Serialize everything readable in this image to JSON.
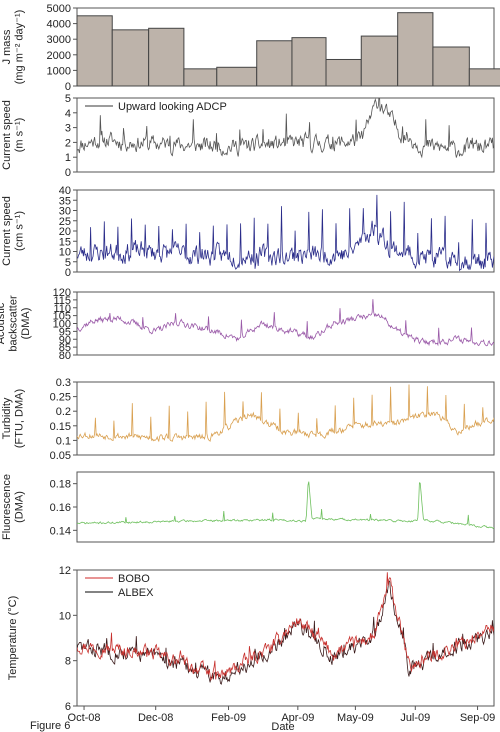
{
  "figure_label": "Figure 6",
  "xlabel": "Date",
  "x_ticks": [
    "Oct-08",
    "Dec-08",
    "Feb-09",
    "Apr-09",
    "May-09",
    "Jul-09",
    "Sep-09"
  ],
  "x_domain": [
    "2008-09-25",
    "2009-09-15"
  ],
  "chart_data": [
    {
      "id": "jmass",
      "type": "bar",
      "ylabel_lines": [
        "J mass",
        "(mg m⁻² day⁻¹)"
      ],
      "ylim": [
        0,
        5000
      ],
      "yticks": [
        0,
        1000,
        2000,
        3000,
        4000,
        5000
      ],
      "bar_fill": "#bdb3aa",
      "bar_stroke": "#444444",
      "bars": [
        {
          "start": "2008-09-25",
          "end": "2008-10-25",
          "value": 4500
        },
        {
          "start": "2008-10-25",
          "end": "2008-11-25",
          "value": 3600
        },
        {
          "start": "2008-11-25",
          "end": "2008-12-25",
          "value": 3700
        },
        {
          "start": "2008-12-25",
          "end": "2009-01-22",
          "value": 1100
        },
        {
          "start": "2009-01-22",
          "end": "2009-02-25",
          "value": 1200
        },
        {
          "start": "2009-02-25",
          "end": "2009-03-27",
          "value": 2900
        },
        {
          "start": "2009-03-27",
          "end": "2009-04-25",
          "value": 3100
        },
        {
          "start": "2009-04-25",
          "end": "2009-05-25",
          "value": 1700
        },
        {
          "start": "2009-05-25",
          "end": "2009-06-25",
          "value": 3200
        },
        {
          "start": "2009-06-25",
          "end": "2009-07-25",
          "value": 4700
        },
        {
          "start": "2009-07-25",
          "end": "2009-08-25",
          "value": 2500
        },
        {
          "start": "2009-08-25",
          "end": "2009-09-25",
          "value": 1100
        }
      ]
    },
    {
      "id": "adcp",
      "type": "line",
      "ylabel_lines": [
        "Current speed",
        "(m s⁻¹)"
      ],
      "ylim": [
        0,
        5
      ],
      "yticks": [
        0,
        1,
        2,
        3,
        4,
        5
      ],
      "legend": [
        {
          "name": "Upward looking ADCP",
          "color": "#7a7a7a"
        }
      ],
      "series": [
        {
          "name": "Upward looking ADCP",
          "color": "#555555",
          "base": [
            [
              "2008-09-25",
              1.8
            ],
            [
              "2008-10-15",
              2.2
            ],
            [
              "2008-11-05",
              2.0
            ],
            [
              "2008-12-01",
              1.9
            ],
            [
              "2009-01-05",
              1.8
            ],
            [
              "2009-02-01",
              1.7
            ],
            [
              "2009-03-01",
              1.8
            ],
            [
              "2009-04-01",
              2.0
            ],
            [
              "2009-05-01",
              1.9
            ],
            [
              "2009-05-25",
              2.2
            ],
            [
              "2009-06-08",
              4.8
            ],
            [
              "2009-06-28",
              2.6
            ],
            [
              "2009-07-15",
              1.8
            ],
            [
              "2009-08-15",
              1.5
            ],
            [
              "2009-09-15",
              1.8
            ]
          ],
          "noise": 0.9,
          "spike_every": 29,
          "spike": 1.4,
          "min": 0.05,
          "seed": 11
        }
      ]
    },
    {
      "id": "current",
      "type": "line",
      "ylabel_lines": [
        "Current speed",
        "(cm s⁻¹)"
      ],
      "ylim": [
        0,
        40
      ],
      "yticks": [
        0,
        5,
        10,
        15,
        20,
        25,
        30,
        35,
        40
      ],
      "series": [
        {
          "name": "",
          "color": "#2a2c8a",
          "base": [
            [
              "2008-09-25",
              9
            ],
            [
              "2008-11-15",
              10
            ],
            [
              "2009-01-15",
              8
            ],
            [
              "2009-03-15",
              8
            ],
            [
              "2009-05-15",
              9
            ],
            [
              "2009-06-05",
              22
            ],
            [
              "2009-06-20",
              12
            ],
            [
              "2009-07-15",
              7
            ],
            [
              "2009-09-15",
              5
            ]
          ],
          "noise": 8,
          "spike_every": 17,
          "spike": 20,
          "min": 0.3,
          "seed": 23
        }
      ]
    },
    {
      "id": "backscatter",
      "type": "line",
      "ylabel_lines": [
        "Acoustic",
        "backscatter",
        "(DMA)"
      ],
      "ylim": [
        80,
        120
      ],
      "yticks": [
        80,
        85,
        90,
        95,
        100,
        105,
        110,
        115,
        120
      ],
      "series": [
        {
          "name": "",
          "color": "#9a5aa8",
          "base": [
            [
              "2008-09-25",
              97
            ],
            [
              "2008-10-10",
              102
            ],
            [
              "2008-11-01",
              103
            ],
            [
              "2008-12-01",
              95
            ],
            [
              "2008-12-20",
              101
            ],
            [
              "2009-01-20",
              95
            ],
            [
              "2009-02-10",
              90
            ],
            [
              "2009-03-01",
              100
            ],
            [
              "2009-03-25",
              95
            ],
            [
              "2009-04-15",
              91
            ],
            [
              "2009-05-01",
              100
            ],
            [
              "2009-05-25",
              104
            ],
            [
              "2009-06-10",
              105
            ],
            [
              "2009-06-25",
              95
            ],
            [
              "2009-07-15",
              88
            ],
            [
              "2009-08-15",
              90
            ],
            [
              "2009-09-15",
              88
            ]
          ],
          "noise": 3.5,
          "spike_every": 41,
          "spike": 8,
          "min": 80,
          "seed": 37
        }
      ]
    },
    {
      "id": "turbidity",
      "type": "line",
      "ylabel_lines": [
        "Turbidity",
        "(FTU, DMA)"
      ],
      "ylim": [
        0.05,
        0.3
      ],
      "yticks": [
        0.05,
        0.1,
        0.15,
        0.2,
        0.25,
        0.3
      ],
      "series": [
        {
          "name": "",
          "color": "#d9a050",
          "base": [
            [
              "2008-09-25",
              0.12
            ],
            [
              "2008-12-01",
              0.11
            ],
            [
              "2009-01-15",
              0.11
            ],
            [
              "2009-02-20",
              0.19
            ],
            [
              "2009-03-20",
              0.13
            ],
            [
              "2009-04-20",
              0.12
            ],
            [
              "2009-05-20",
              0.15
            ],
            [
              "2009-06-25",
              0.16
            ],
            [
              "2009-07-25",
              0.2
            ],
            [
              "2009-08-15",
              0.13
            ],
            [
              "2009-09-15",
              0.18
            ]
          ],
          "noise": 0.02,
          "spike_every": 23,
          "spike": 0.1,
          "min": 0.08,
          "seed": 53
        }
      ]
    },
    {
      "id": "fluorescence",
      "type": "line",
      "ylabel_lines": [
        "Fluorescence",
        "(DMA)"
      ],
      "ylim": [
        0.13,
        0.19
      ],
      "yticks": [
        0.14,
        0.16,
        0.18
      ],
      "series": [
        {
          "name": "",
          "color": "#6fc05f",
          "base": [
            [
              "2008-09-25",
              0.146
            ],
            [
              "2009-01-01",
              0.148
            ],
            [
              "2009-03-15",
              0.149
            ],
            [
              "2009-04-08",
              0.148
            ],
            [
              "2009-04-10",
              0.186
            ],
            [
              "2009-04-13",
              0.15
            ],
            [
              "2009-07-01",
              0.148
            ],
            [
              "2009-07-12",
              0.148
            ],
            [
              "2009-07-14",
              0.183
            ],
            [
              "2009-07-17",
              0.149
            ],
            [
              "2009-09-15",
              0.142
            ]
          ],
          "noise": 0.0015,
          "spike_every": 61,
          "spike": 0.008,
          "min": 0.138,
          "seed": 71
        }
      ]
    },
    {
      "id": "temperature",
      "type": "line",
      "ylabel_lines": [
        "Temperature (°C)"
      ],
      "ylim": [
        6,
        12
      ],
      "yticks": [
        6,
        8,
        10,
        12
      ],
      "legend": [
        {
          "name": "BOBO",
          "color": "#e07070"
        },
        {
          "name": "ALBEX",
          "color": "#5a5a5a"
        }
      ],
      "series": [
        {
          "name": "ALBEX",
          "color": "#3a1a1a",
          "base": [
            [
              "2008-09-25",
              8.6
            ],
            [
              "2008-12-01",
              8.2
            ],
            [
              "2009-01-25",
              7.2
            ],
            [
              "2009-03-10",
              8.5
            ],
            [
              "2009-04-01",
              9.7
            ],
            [
              "2009-05-01",
              8.2
            ],
            [
              "2009-06-05",
              9.0
            ],
            [
              "2009-06-18",
              11.4
            ],
            [
              "2009-07-05",
              7.6
            ],
            [
              "2009-08-15",
              8.6
            ],
            [
              "2009-09-15",
              9.3
            ]
          ],
          "noise": 0.55,
          "spike_every": 37,
          "spike": 0.6,
          "min": 6.4,
          "seed": 83
        },
        {
          "name": "BOBO",
          "color": "#c7302d",
          "base": [
            [
              "2008-09-25",
              8.7
            ],
            [
              "2008-12-01",
              8.3
            ],
            [
              "2009-01-25",
              7.3
            ],
            [
              "2009-03-10",
              8.6
            ],
            [
              "2009-04-01",
              9.8
            ],
            [
              "2009-05-01",
              8.3
            ],
            [
              "2009-06-05",
              9.1
            ],
            [
              "2009-06-18",
              11.5
            ],
            [
              "2009-07-05",
              7.7
            ],
            [
              "2009-08-15",
              8.7
            ],
            [
              "2009-09-15",
              9.4
            ]
          ],
          "noise": 0.5,
          "spike_every": 43,
          "spike": 0.5,
          "min": 6.5,
          "seed": 97
        }
      ]
    }
  ]
}
